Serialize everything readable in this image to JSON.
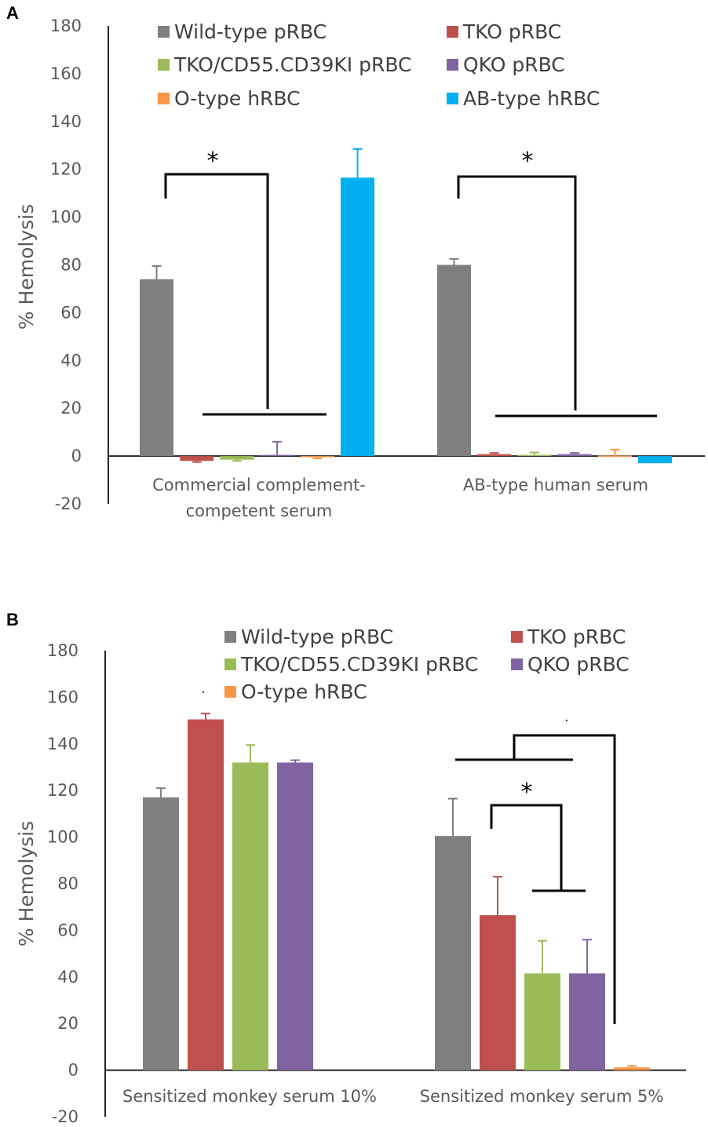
{
  "chart_data": [
    {
      "type": "bar",
      "panel_label": "A",
      "ylabel": "% Hemolysis",
      "xlabel": "",
      "ylim": [
        -20,
        180
      ],
      "yticks": [
        -20,
        0,
        20,
        40,
        60,
        80,
        100,
        120,
        140,
        160,
        180
      ],
      "grid": false,
      "legend_position": "top",
      "categories": [
        [
          "Commercial complement-",
          "competent serum"
        ],
        [
          "AB-type human serum"
        ]
      ],
      "series": [
        {
          "name": "Wild-type pRBC",
          "color": "#7f7f7f",
          "values": [
            74,
            80
          ],
          "errors": [
            5.5,
            2.5
          ]
        },
        {
          "name": "TKO pRBC",
          "color": "#c0504d",
          "values": [
            -2,
            0.8
          ],
          "errors": [
            0.5,
            0.5
          ]
        },
        {
          "name": "TKO/CD55.CD39KI pRBC",
          "color": "#9bbb59",
          "values": [
            -1.5,
            0.5
          ],
          "errors": [
            0.5,
            1.0
          ]
        },
        {
          "name": "QKO pRBC",
          "color": "#8064a2",
          "values": [
            0.5,
            0.8
          ],
          "errors": [
            5.5,
            0.5
          ]
        },
        {
          "name": "O-type hRBC",
          "color": "#f79646",
          "values": [
            -0.5,
            0.2
          ],
          "errors": [
            0.5,
            2.5
          ]
        },
        {
          "name": "AB-type hRBC",
          "color": "#00b0f0",
          "values": [
            116.5,
            -3
          ],
          "errors": [
            12,
            0
          ]
        }
      ],
      "annotations": [
        {
          "text": "*",
          "group": 0
        },
        {
          "text": "*",
          "group": 1
        }
      ]
    },
    {
      "type": "bar",
      "panel_label": "B",
      "ylabel": "% Hemolysis",
      "xlabel": "",
      "ylim": [
        -20,
        180
      ],
      "yticks": [
        -20,
        0,
        20,
        40,
        60,
        80,
        100,
        120,
        140,
        160,
        180
      ],
      "grid": false,
      "legend_position": "top",
      "categories": [
        [
          "Sensitized monkey serum 10%"
        ],
        [
          "Sensitized monkey serum 5%"
        ]
      ],
      "series": [
        {
          "name": "Wild-type pRBC",
          "color": "#7f7f7f",
          "values": [
            117,
            100.5
          ],
          "errors": [
            4,
            16
          ]
        },
        {
          "name": "TKO pRBC",
          "color": "#c0504d",
          "values": [
            150.5,
            66.5
          ],
          "errors": [
            2.5,
            16.5
          ]
        },
        {
          "name": "TKO/CD55.CD39KI pRBC",
          "color": "#9bbb59",
          "values": [
            132,
            41.5
          ],
          "errors": [
            7.5,
            14
          ]
        },
        {
          "name": "QKO pRBC",
          "color": "#8064a2",
          "values": [
            132,
            41.5
          ],
          "errors": [
            1,
            14.5
          ]
        },
        {
          "name": "O-type hRBC",
          "color": "#f79646",
          "values": [
            null,
            1.2
          ],
          "errors": [
            null,
            0.6
          ]
        }
      ],
      "annotations": [
        {
          "text": "*",
          "group": 1
        }
      ]
    }
  ]
}
